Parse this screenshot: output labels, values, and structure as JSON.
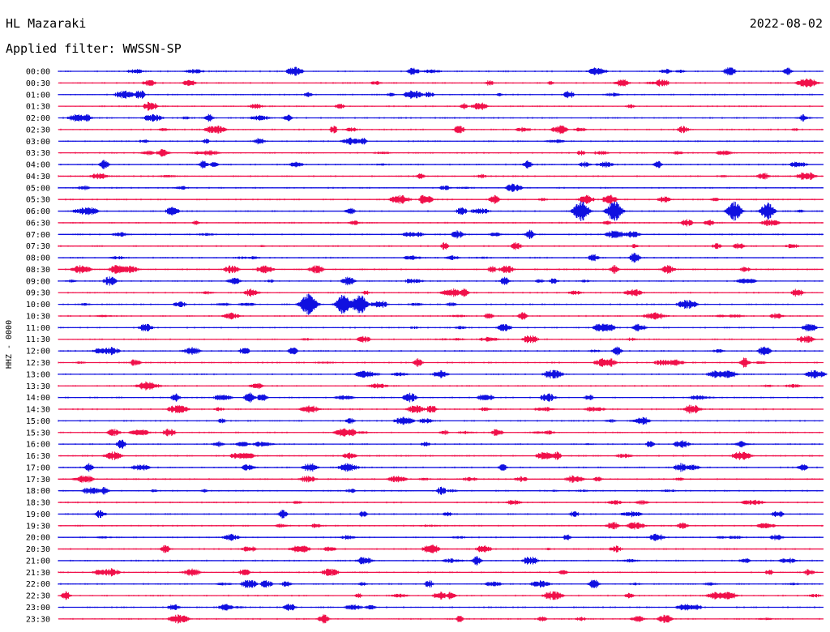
{
  "header": {
    "station": "HL Mazaraki",
    "date": "2022-08-02",
    "filter_label": "Applied filter: WWSSN-SP"
  },
  "channel_label": "HHZ - 0000",
  "colors": {
    "trace_a": "#1010e0",
    "trace_b": "#f0104a",
    "text": "#000000",
    "background": "#ffffff"
  },
  "chart_data": {
    "type": "line",
    "title": "",
    "xlabel": "",
    "ylabel": "HHZ - 0000",
    "minutes_per_line": 30,
    "series": [
      {
        "name": "",
        "values": []
      }
    ],
    "row_labels": [
      "00:00",
      "00:30",
      "01:00",
      "01:30",
      "02:00",
      "02:30",
      "03:00",
      "03:30",
      "04:00",
      "04:30",
      "05:00",
      "05:30",
      "06:00",
      "06:30",
      "07:00",
      "07:30",
      "08:00",
      "08:30",
      "09:00",
      "09:30",
      "10:00",
      "10:30",
      "11:00",
      "11:30",
      "12:00",
      "12:30",
      "13:00",
      "13:30",
      "14:00",
      "14:30",
      "15:00",
      "15:30",
      "16:00",
      "16:30",
      "17:00",
      "17:30",
      "18:00",
      "18:30",
      "19:00",
      "19:30",
      "20:00",
      "20:30",
      "21:00",
      "21:30",
      "22:00",
      "22:30",
      "23:00",
      "23:30"
    ],
    "events": [
      {
        "row": "00:00",
        "minute": 28.6,
        "strength": 1.0
      },
      {
        "row": "00:30",
        "minute": 19.3,
        "strength": 0.5
      },
      {
        "row": "01:00",
        "minute": 17.3,
        "strength": 0.5
      },
      {
        "row": "01:30",
        "minute": 15.9,
        "strength": 0.8
      },
      {
        "row": "02:00",
        "minute": 1.1,
        "strength": 1.1
      },
      {
        "row": "02:00",
        "minute": 5.9,
        "strength": 1.0
      },
      {
        "row": "02:00",
        "minute": 9.0,
        "strength": 0.9
      },
      {
        "row": "04:00",
        "minute": 1.8,
        "strength": 1.2
      },
      {
        "row": "04:00",
        "minute": 5.7,
        "strength": 1.1
      },
      {
        "row": "04:00",
        "minute": 18.4,
        "strength": 1.1
      },
      {
        "row": "04:00",
        "minute": 23.5,
        "strength": 1.0
      },
      {
        "row": "04:30",
        "minute": 14.2,
        "strength": 0.9
      },
      {
        "row": "06:00",
        "minute": 20.5,
        "strength": 2.6
      },
      {
        "row": "06:00",
        "minute": 21.8,
        "strength": 2.6
      },
      {
        "row": "06:00",
        "minute": 26.5,
        "strength": 2.4
      },
      {
        "row": "06:00",
        "minute": 27.8,
        "strength": 2.2
      },
      {
        "row": "07:00",
        "minute": 18.5,
        "strength": 1.2
      },
      {
        "row": "08:00",
        "minute": 22.6,
        "strength": 1.4
      },
      {
        "row": "08:30",
        "minute": 21.8,
        "strength": 1.1
      },
      {
        "row": "09:00",
        "minute": 17.5,
        "strength": 1.1
      },
      {
        "row": "09:30",
        "minute": 15.9,
        "strength": 1.1
      },
      {
        "row": "10:00",
        "minute": 9.8,
        "strength": 2.8
      },
      {
        "row": "10:00",
        "minute": 11.2,
        "strength": 2.6
      },
      {
        "row": "10:00",
        "minute": 11.8,
        "strength": 2.6
      },
      {
        "row": "10:30",
        "minute": 18.2,
        "strength": 1.1
      },
      {
        "row": "12:00",
        "minute": 9.2,
        "strength": 1.1
      },
      {
        "row": "12:00",
        "minute": 21.9,
        "strength": 1.2
      },
      {
        "row": "12:30",
        "minute": 14.1,
        "strength": 1.1
      },
      {
        "row": "12:30",
        "minute": 26.9,
        "strength": 1.3
      },
      {
        "row": "14:00",
        "minute": 4.6,
        "strength": 1.1
      },
      {
        "row": "14:00",
        "minute": 7.5,
        "strength": 1.4
      },
      {
        "row": "15:30",
        "minute": 11.5,
        "strength": 1.1
      },
      {
        "row": "17:00",
        "minute": 1.2,
        "strength": 1.1
      },
      {
        "row": "18:00",
        "minute": 1.8,
        "strength": 1.0
      },
      {
        "row": "19:00",
        "minute": 8.8,
        "strength": 1.1
      },
      {
        "row": "20:30",
        "minute": 4.2,
        "strength": 1.1
      },
      {
        "row": "21:00",
        "minute": 16.4,
        "strength": 1.2
      },
      {
        "row": "22:00",
        "minute": 21.0,
        "strength": 1.3
      },
      {
        "row": "22:30",
        "minute": 0.3,
        "strength": 1.1
      },
      {
        "row": "22:30",
        "minute": 15.4,
        "strength": 1.1
      }
    ]
  }
}
